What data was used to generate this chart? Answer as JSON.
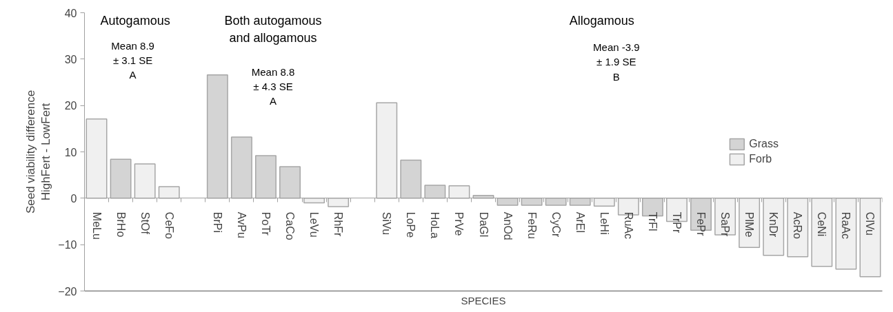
{
  "chart_data": {
    "type": "bar",
    "xlabel": "SPECIES",
    "ylabel": "Seed viability difference\nHighFert - LowFert",
    "categories": [
      "MeLu",
      "BrHo",
      "StOf",
      "CeFo",
      null,
      "BrPi",
      "AvPu",
      "PoTr",
      "CaCo",
      "LeVu",
      "RhFr",
      null,
      "SiVu",
      "LoPe",
      "HoLa",
      "PrVe",
      "DaGl",
      "AnOd",
      "FeRu",
      "CyCr",
      "ArEl",
      "LeHi",
      "RuAc",
      "TrFl",
      "TrPr",
      "FePr",
      "SaPr",
      "PlMe",
      "KnDr",
      "AcRo",
      "CeNi",
      "RaAc",
      "ClVu"
    ],
    "series": [
      {
        "name": "Grass",
        "color": "#d4d4d4",
        "values": [
          null,
          8.4,
          null,
          null,
          null,
          26.6,
          13.2,
          9.2,
          6.8,
          null,
          null,
          null,
          null,
          8.2,
          2.8,
          null,
          0.6,
          -1.5,
          -1.5,
          -1.5,
          -1.5,
          null,
          null,
          -3.8,
          null,
          -6.9,
          null,
          null,
          null,
          null,
          null,
          null,
          null
        ]
      },
      {
        "name": "Forb",
        "color": "#f0f0f0",
        "values": [
          17.1,
          null,
          7.4,
          2.5,
          null,
          null,
          null,
          null,
          null,
          -1.0,
          -1.8,
          null,
          20.6,
          null,
          null,
          2.7,
          null,
          null,
          null,
          null,
          null,
          -1.7,
          -3.6,
          null,
          -5.0,
          null,
          -7.9,
          -10.6,
          -12.3,
          -12.6,
          -14.7,
          -15.3,
          -16.9
        ]
      }
    ],
    "ylim": [
      -20,
      40
    ],
    "yticks": [
      -20,
      -10,
      0,
      10,
      20,
      30,
      40
    ],
    "grid": false,
    "legend": "right",
    "annotations": [
      "Autogamous",
      "Mean 8.9\n± 3.1 SE\nA",
      "Both autogamous\nand allogamous",
      "Mean 8.8\n± 4.3 SE\nA",
      "Allogamous",
      "Mean -3.9\n± 1.9 SE\nB"
    ]
  }
}
